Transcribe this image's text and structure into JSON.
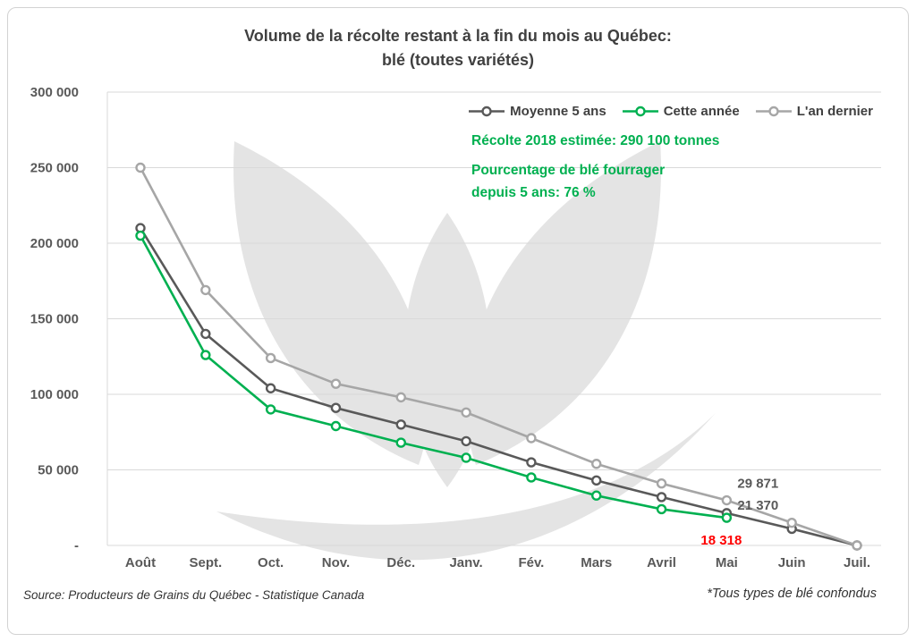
{
  "title": {
    "line1": "Volume de la récolte restant à la fin du mois au Québec:",
    "line2": "blé (toutes variétés)"
  },
  "annotations": {
    "estimate": "Récolte 2018 estimée: 290 100 tonnes",
    "fourrager_line1": "Pourcentage de blé fourrager",
    "fourrager_line2": "depuis 5 ans: 76 %"
  },
  "value_labels": [
    {
      "text": "29 871",
      "color": "#595959",
      "series": 2,
      "position": "above-right"
    },
    {
      "text": "21 370",
      "color": "#595959",
      "series": 0,
      "position": "right"
    },
    {
      "text": "18 318",
      "color": "#ff0000",
      "series": 1,
      "position": "below"
    }
  ],
  "footer": {
    "source": "Source: Producteurs de Grains du Québec - Statistique Canada",
    "note": "*Tous types de blé confondus"
  },
  "chart_data": {
    "type": "line",
    "title": "Volume de la récolte restant à la fin du mois au Québec: blé (toutes variétés)",
    "categories": [
      "Août",
      "Sept.",
      "Oct.",
      "Nov.",
      "Déc.",
      "Janv.",
      "Fév.",
      "Mars",
      "Avril",
      "Mai",
      "Juin",
      "Juil."
    ],
    "series": [
      {
        "name": "Moyenne 5 ans",
        "color": "#595959",
        "values": [
          210000,
          140000,
          104000,
          91000,
          80000,
          69000,
          55000,
          43000,
          32000,
          21370,
          11000,
          0
        ]
      },
      {
        "name": "Cette année",
        "color": "#00b050",
        "values": [
          205000,
          126000,
          90000,
          79000,
          68000,
          58000,
          45000,
          33000,
          24000,
          18318,
          null,
          null
        ]
      },
      {
        "name": "L'an dernier",
        "color": "#a6a6a6",
        "values": [
          250000,
          169000,
          124000,
          107000,
          98000,
          88000,
          71000,
          54000,
          41000,
          29871,
          15000,
          0
        ]
      }
    ],
    "ylim": [
      0,
      300000
    ],
    "ytick_step": 50000,
    "ytick_labels": [
      "-",
      "50 000",
      "100 000",
      "150 000",
      "200 000",
      "250 000",
      "300 000"
    ],
    "grid": "horizontal",
    "legend_position": "top-right",
    "label_month_index": 9
  }
}
